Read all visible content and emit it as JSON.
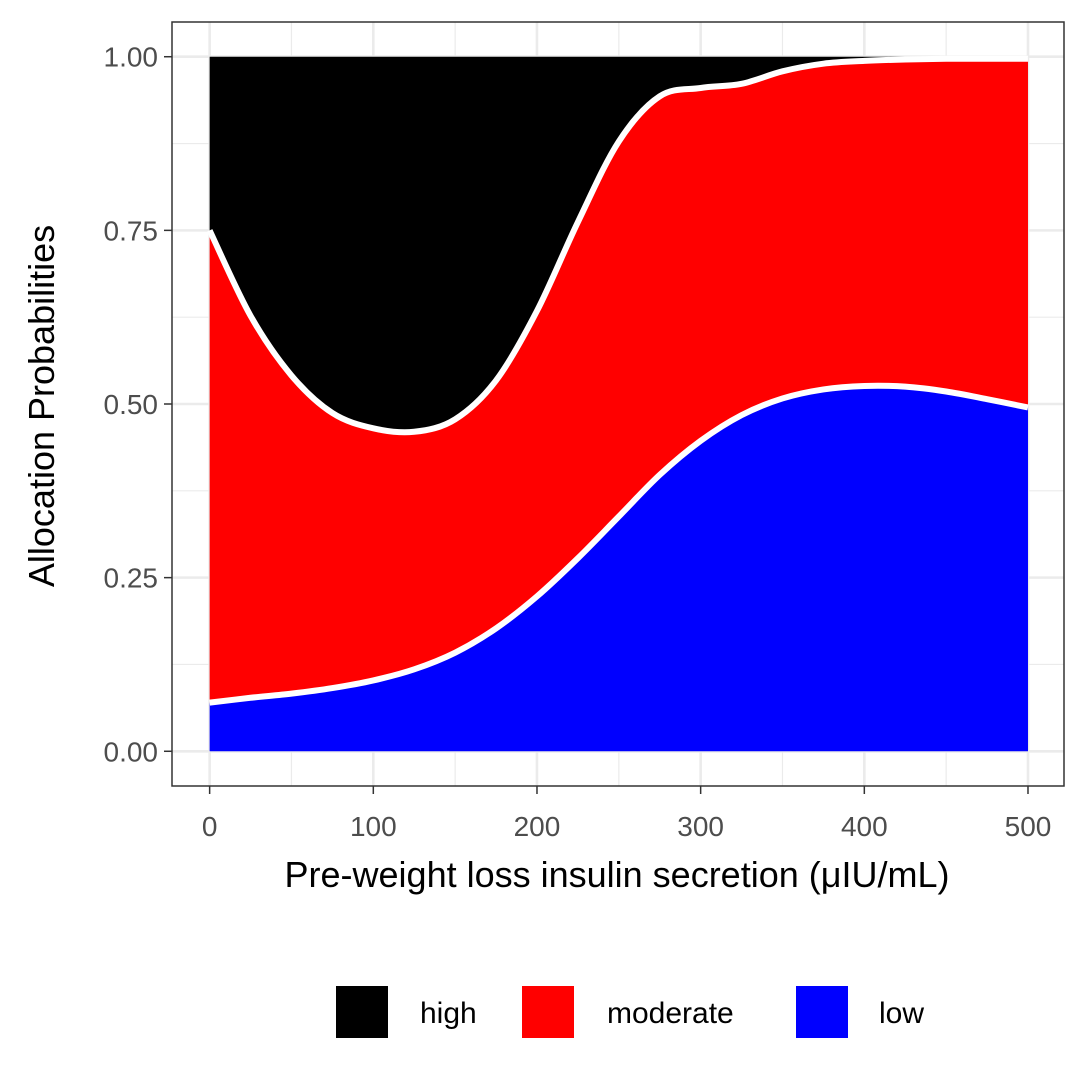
{
  "chart_data": {
    "type": "area",
    "stacked": true,
    "title": "",
    "xlabel": "Pre-weight loss insulin secretion (μIU/mL)",
    "ylabel": "Allocation Probabilities",
    "xlim": [
      -23,
      522
    ],
    "ylim": [
      -0.05,
      1.05
    ],
    "x_ticks": [
      0,
      100,
      200,
      300,
      400,
      500
    ],
    "x_tick_labels": [
      "0",
      "100",
      "200",
      "300",
      "400",
      "500"
    ],
    "y_ticks": [
      0,
      0.25,
      0.5,
      0.75,
      1.0
    ],
    "y_tick_labels": [
      "0.00",
      "0.25",
      "0.50",
      "0.75",
      "1.00"
    ],
    "grid": true,
    "legend_position": "bottom",
    "x": [
      0,
      25,
      50,
      75,
      100,
      125,
      150,
      175,
      200,
      225,
      250,
      275,
      300,
      325,
      350,
      375,
      400,
      425,
      450,
      475,
      500
    ],
    "series": [
      {
        "name": "low",
        "color": "#0000FF",
        "values": [
          0.07,
          0.077,
          0.083,
          0.091,
          0.102,
          0.118,
          0.142,
          0.177,
          0.223,
          0.278,
          0.338,
          0.398,
          0.447,
          0.484,
          0.508,
          0.521,
          0.526,
          0.525,
          0.518,
          0.507,
          0.495
        ]
      },
      {
        "name": "moderate",
        "color": "#FF0000",
        "values": [
          0.68,
          0.55,
          0.458,
          0.396,
          0.363,
          0.342,
          0.336,
          0.357,
          0.411,
          0.484,
          0.54,
          0.545,
          0.508,
          0.477,
          0.471,
          0.469,
          0.468,
          0.471,
          0.479,
          0.49,
          0.502
        ]
      },
      {
        "name": "high",
        "color": "#000000",
        "values": [
          0.25,
          0.373,
          0.459,
          0.513,
          0.535,
          0.54,
          0.522,
          0.466,
          0.366,
          0.238,
          0.122,
          0.057,
          0.045,
          0.039,
          0.021,
          0.01,
          0.006,
          0.004,
          0.003,
          0.003,
          0.003
        ]
      }
    ],
    "legend_entries": [
      "high",
      "moderate",
      "low"
    ]
  }
}
